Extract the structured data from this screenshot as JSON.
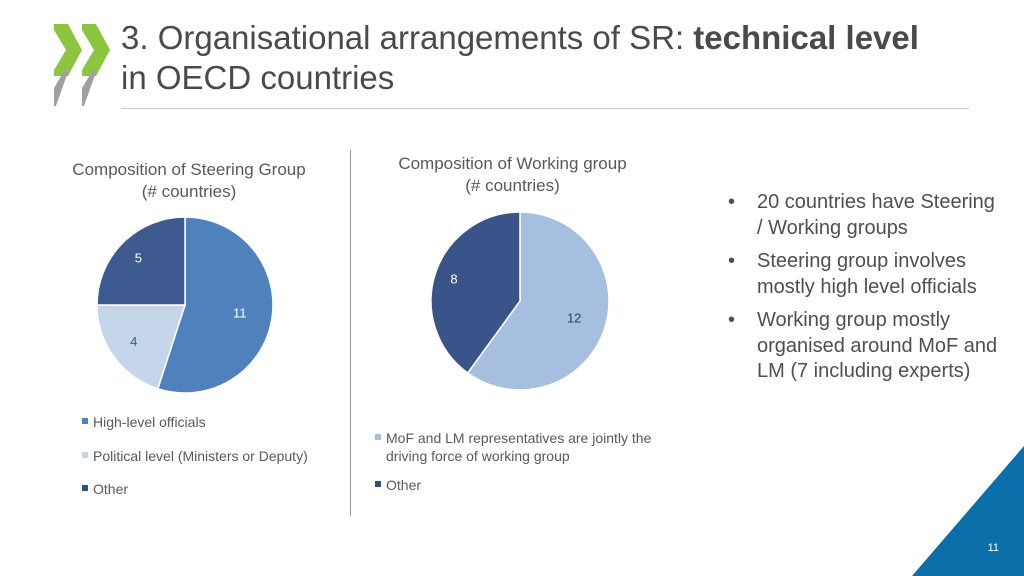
{
  "header": {
    "title_plain": "3. Organisational arrangements of SR: ",
    "title_bold": "technical level",
    "title_line2": "in OECD countries"
  },
  "steering_chart": {
    "title_line1": "Composition of Steering Group",
    "title_line2": "(# countries)"
  },
  "working_chart": {
    "title_line1": "Composition of Working group",
    "title_line2": "(# countries)"
  },
  "legends": {
    "steering": [
      {
        "label": "High-level officials",
        "color": "#4f81bd"
      },
      {
        "label": "Political level (Ministers or Deputy)",
        "color": "#c5d5ea"
      },
      {
        "label": "Other",
        "color": "#2f4f8a"
      }
    ],
    "working": [
      {
        "label_line1": "MoF and LM representatives are jointly the",
        "label_line2": "driving force of working group",
        "color": "#a7bfdf"
      },
      {
        "label": "Other",
        "color": "#2f4f8a"
      }
    ]
  },
  "bullets": [
    "20 countries have Steering / Working groups",
    "Steering group involves mostly high level officials",
    "Working group mostly organised around MoF and LM (7 including experts)"
  ],
  "bullet_glyph": "•",
  "page_number": "11",
  "colors": {
    "accent_green": "#8cc63f",
    "corner_blue": "#0a6ea8"
  },
  "chart_data": [
    {
      "type": "pie",
      "title": "Composition of Steering Group (# countries)",
      "categories": [
        "High-level officials",
        "Political level (Ministers or Deputy)",
        "Other"
      ],
      "values": [
        11,
        4,
        5
      ],
      "colors": [
        "#4f81bd",
        "#c5d5ea",
        "#3d5a8e"
      ],
      "legend": "bottom"
    },
    {
      "type": "pie",
      "title": "Composition of Working group (# countries)",
      "categories": [
        "MoF and LM representatives are jointly the driving force of working group",
        "Other"
      ],
      "values": [
        12,
        8
      ],
      "colors": [
        "#a7bfdf",
        "#3a5389"
      ],
      "legend": "bottom"
    }
  ]
}
